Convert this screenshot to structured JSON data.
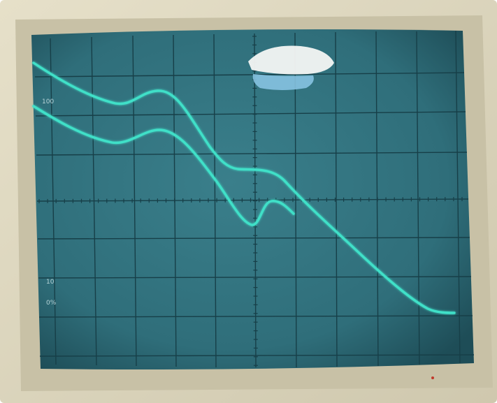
{
  "graticule_labels": {
    "upper": "100",
    "lower": "10",
    "lower_sub": "0%"
  },
  "colors": {
    "bezel": "#d9d3bd",
    "bezel_shadow": "#b9b29a",
    "screen": "#2f6e7a",
    "screen_dark": "#1f4e58",
    "grid": "#143a42",
    "trace": "#3fe0c8",
    "glare": "#f4f6f4",
    "glare_blue": "#8cc8e8"
  },
  "traces": [
    {
      "name": "",
      "role": "upper-trace"
    },
    {
      "name": "",
      "role": "lower-trace"
    }
  ]
}
